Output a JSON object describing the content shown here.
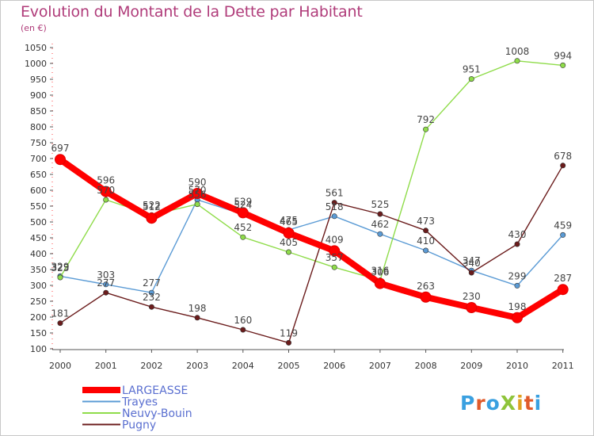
{
  "chart_data": {
    "type": "line",
    "title": "Evolution du Montant de la Dette par Habitant",
    "subtitle": "(en €)",
    "xlabel": "",
    "ylabel": "",
    "categories": [
      "2000",
      "2001",
      "2002",
      "2003",
      "2004",
      "2005",
      "2006",
      "2007",
      "2008",
      "2009",
      "2010",
      "2011"
    ],
    "yticks": [
      100,
      150,
      200,
      250,
      300,
      350,
      400,
      450,
      500,
      550,
      600,
      650,
      700,
      750,
      800,
      850,
      900,
      950,
      1000,
      1050
    ],
    "ylim": [
      100,
      1050
    ],
    "grid": false,
    "legend_position": "bottom-left",
    "series": [
      {
        "name": "LARGEASSE",
        "color": "#ff0000",
        "values": [
          697,
          596,
          512,
          590,
          529,
          465,
          409,
          306,
          263,
          230,
          198,
          287
        ]
      },
      {
        "name": "Trayes",
        "color": "#5b9bd5",
        "values": [
          329,
          303,
          277,
          570,
          524,
          475,
          518,
          462,
          410,
          347,
          299,
          459
        ]
      },
      {
        "name": "Neuvy-Bouin",
        "color": "#8fdc4a",
        "values": [
          325,
          570,
          522,
          556,
          452,
          405,
          357,
          316,
          792,
          951,
          1008,
          994
        ]
      },
      {
        "name": "Pugny",
        "color": "#6b1c1c",
        "values": [
          181,
          277,
          232,
          198,
          160,
          119,
          561,
          525,
          473,
          340,
          430,
          678
        ]
      }
    ]
  },
  "brand": {
    "logo_text": "ProXiti"
  }
}
